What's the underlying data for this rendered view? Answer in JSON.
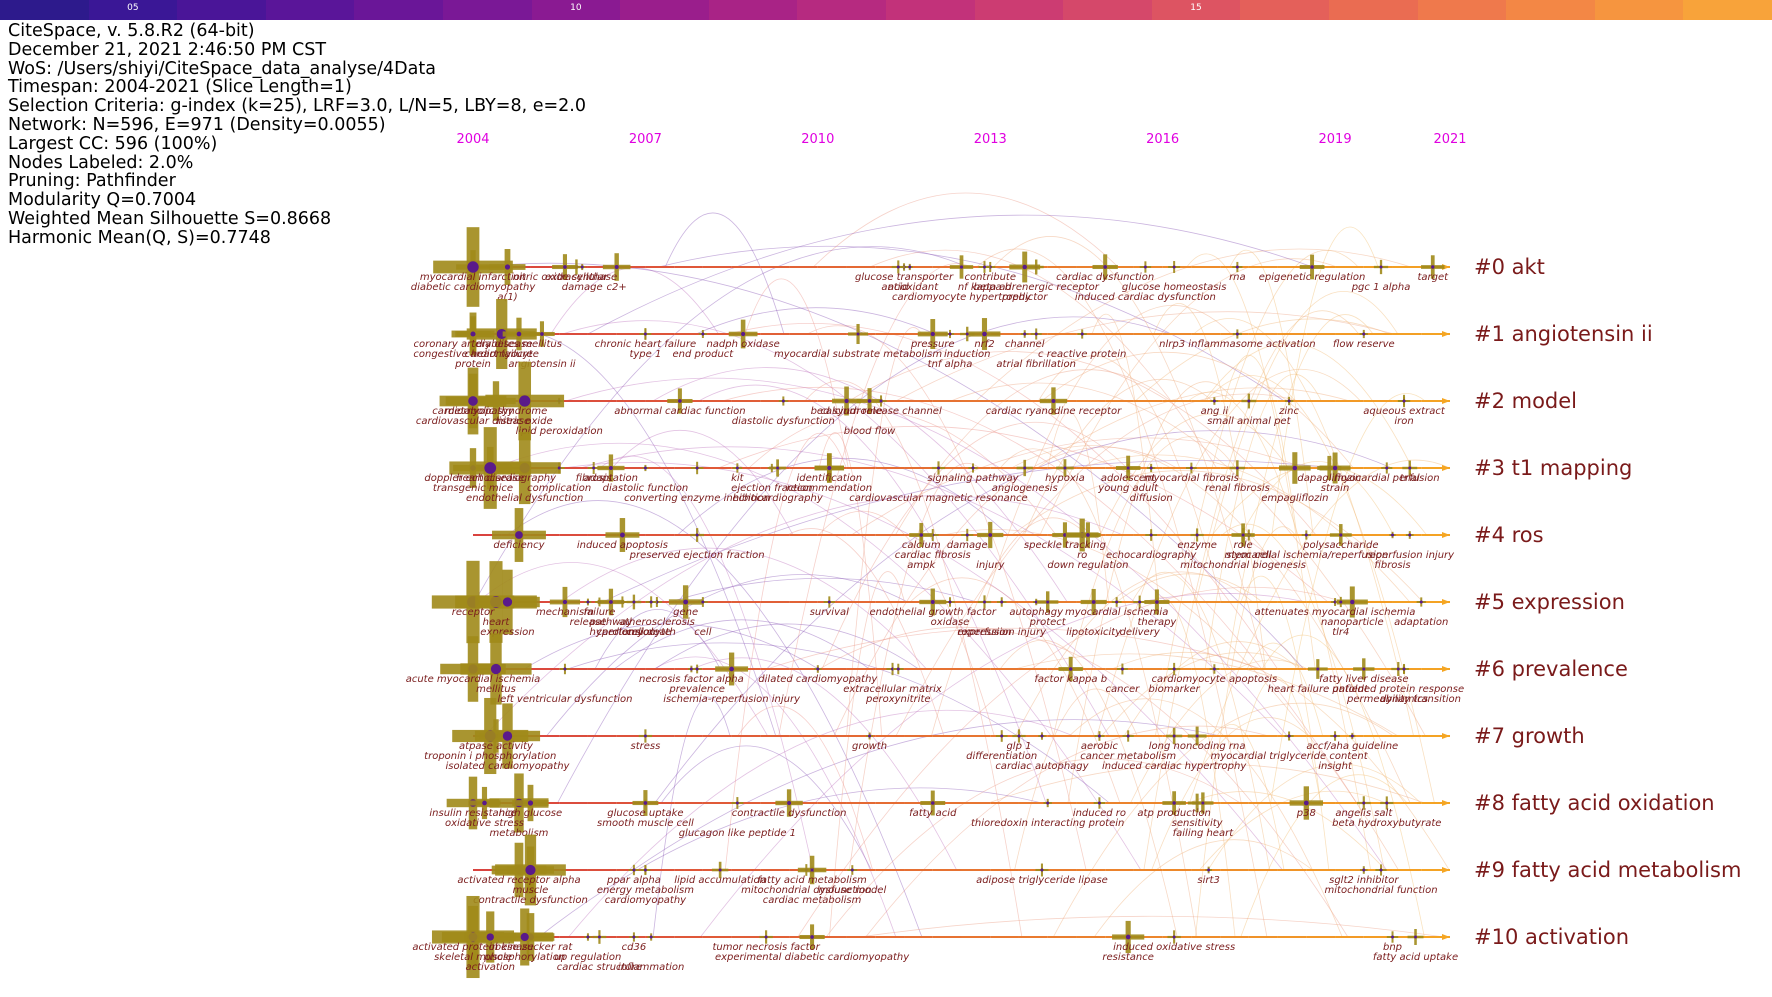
{
  "colorbar": {
    "colors": [
      "#2d1a8c",
      "#3a1796",
      "#4a1598",
      "#5a1599",
      "#6a1698",
      "#7a1896",
      "#8a1a92",
      "#9a1e8c",
      "#a92386",
      "#b62a80",
      "#c2327a",
      "#cc3c72",
      "#d5486a",
      "#dd5462",
      "#e4605a",
      "#ea6c52",
      "#ef794c",
      "#f38745",
      "#f6953f",
      "#f8a33a"
    ],
    "ticks": [
      {
        "index": 1,
        "label": "05"
      },
      {
        "index": 6,
        "label": "10"
      },
      {
        "index": 13,
        "label": "15"
      }
    ]
  },
  "info_lines": [
    "CiteSpace, v. 5.8.R2 (64-bit)",
    "December 21, 2021 2:46:50 PM CST",
    "WoS: /Users/shiyi/CiteSpace_data_analyse/4Data",
    "Timespan: 2004-2021 (Slice Length=1)",
    "Selection Criteria: g-index (k=25), LRF=3.0, L/N=5, LBY=8, e=2.0",
    "Network: N=596, E=971 (Density=0.0055)",
    "Largest CC: 596 (100%)",
    "Nodes Labeled: 2.0%",
    "Pruning: Pathfinder",
    "Modularity Q=0.7004",
    "Weighted Mean Silhouette S=0.8668",
    "Harmonic Mean(Q, S)=0.7748"
  ],
  "year_axis": {
    "start": 2004,
    "end": 2021,
    "labels": [
      "2004",
      "2007",
      "2010",
      "2013",
      "2016",
      "2019",
      "2021"
    ]
  },
  "colors": {
    "line_early": "#d9433f",
    "line_late": "#f5a623",
    "node_olive": "#a0891a",
    "node_purple": "#5a1a8a",
    "label": "#7a1a1a",
    "years": "#e000e0"
  },
  "clusters": [
    {
      "label": "#0 akt",
      "end_year": 2021,
      "keywords": [
        [
          "myocardial infarction",
          2004
        ],
        [
          "diabetic cardiomyopathy",
          2004
        ],
        [
          "a(1)",
          2004.6
        ],
        [
          "extracellular",
          2005.8
        ],
        [
          "damage",
          2005.9
        ],
        [
          "c2+",
          2006.5
        ],
        [
          "nitric oxide synthase",
          2005.6
        ],
        [
          "glucose transporter",
          2011.5
        ],
        [
          "acid",
          2011.4
        ],
        [
          "cardiomyocyte hypertrophy",
          2012.5
        ],
        [
          "antioxidant",
          2011.6
        ],
        [
          "contribute",
          2013.0
        ],
        [
          "nf kappa b",
          2012.9
        ],
        [
          "beta adrenergic receptor",
          2013.8
        ],
        [
          "predictor",
          2013.6
        ],
        [
          "cardiac dysfunction",
          2015.0
        ],
        [
          "induced cardiac dysfunction",
          2015.7
        ],
        [
          "glucose homeostasis",
          2016.2
        ],
        [
          "rna",
          2017.3
        ],
        [
          "epigenetic regulation",
          2018.6
        ],
        [
          "pgc 1 alpha",
          2019.8
        ],
        [
          "target",
          2020.7
        ]
      ]
    },
    {
      "label": "#1 angiotensin ii",
      "end_year": 2021,
      "keywords": [
        [
          "coronary artery disease",
          2004
        ],
        [
          "cardiomyocyte",
          2004.5
        ],
        [
          "protein",
          2004
        ],
        [
          "diabetes mellitus",
          2004.8
        ],
        [
          "congestive heart failure",
          2004
        ],
        [
          "angiotensin ii",
          2005.2
        ],
        [
          "chronic heart failure",
          2007.0
        ],
        [
          "type 1",
          2007.0
        ],
        [
          "end product",
          2008.0
        ],
        [
          "nadph oxidase",
          2008.7
        ],
        [
          "myocardial substrate metabolism",
          2010.7
        ],
        [
          "pressure",
          2012.0
        ],
        [
          "tnf alpha",
          2012.3
        ],
        [
          "induction",
          2012.6
        ],
        [
          "nrf2",
          2012.9
        ],
        [
          "channel",
          2013.6
        ],
        [
          "atrial fibrillation",
          2013.8
        ],
        [
          "c reactive protein",
          2014.6
        ],
        [
          "nlrp3 inflammasome activation",
          2017.3
        ],
        [
          "flow reserve",
          2019.5
        ]
      ]
    },
    {
      "label": "#2 model",
      "end_year": 2021,
      "keywords": [
        [
          "metabolic syndrome",
          2004.4
        ],
        [
          "cardiovascular disease",
          2004
        ],
        [
          "lipid peroxidation",
          2005.5
        ],
        [
          "cardiomyopathy",
          2004
        ],
        [
          "nitric oxide",
          2004.9
        ],
        [
          "abnormal cardiac function",
          2007.6
        ],
        [
          "diastolic dysfunction",
          2009.4
        ],
        [
          "bed syndrome",
          2010.5
        ],
        [
          "blood flow",
          2010.9
        ],
        [
          "calcium release channel",
          2011.1
        ],
        [
          "cardiac ryanodine receptor",
          2014.1
        ],
        [
          "ang ii",
          2016.9
        ],
        [
          "small animal pet",
          2017.5
        ],
        [
          "zinc",
          2018.2
        ],
        [
          "aqueous extract",
          2020.2
        ],
        [
          "iron",
          2020.2
        ]
      ]
    },
    {
      "label": "#3 t1 mapping",
      "end_year": 2021,
      "keywords": [
        [
          "doppler echocardiography",
          2004.3
        ],
        [
          "transgenic mice",
          2004
        ],
        [
          "endothelial dysfunction",
          2004.9
        ],
        [
          "heart disease",
          2004.3
        ],
        [
          "complication",
          2005.5
        ],
        [
          "adaptation",
          2006.4
        ],
        [
          "fibrosis",
          2006.1
        ],
        [
          "diastolic function",
          2007.0
        ],
        [
          "converting enzyme inhibition",
          2007.9
        ],
        [
          "kit",
          2008.6
        ],
        [
          "ejection fraction",
          2009.2
        ],
        [
          "echocardiography",
          2009.3
        ],
        [
          "identification",
          2010.2
        ],
        [
          "recommendation",
          2010.2
        ],
        [
          "cardiovascular magnetic resonance",
          2012.1
        ],
        [
          "signaling pathway",
          2012.7
        ],
        [
          "angiogenesis",
          2013.6
        ],
        [
          "hypoxia",
          2014.3
        ],
        [
          "adolescent",
          2015.4
        ],
        [
          "young adult",
          2015.4
        ],
        [
          "diffusion",
          2015.8
        ],
        [
          "myocardial fibrosis",
          2016.5
        ],
        [
          "renal fibrosis",
          2017.3
        ],
        [
          "dapagliflozin",
          2018.9
        ],
        [
          "empagliflozin",
          2018.3
        ],
        [
          "strain",
          2019.0
        ],
        [
          "trial",
          2020.3
        ],
        [
          "myocardial perfusion",
          2019.9
        ]
      ]
    },
    {
      "label": "#4 ros",
      "end_year": 2021,
      "keywords": [
        [
          "deficiency",
          2004.8
        ],
        [
          "induced apoptosis",
          2006.6
        ],
        [
          "preserved ejection fraction",
          2007.9
        ],
        [
          "calcium",
          2011.8
        ],
        [
          "cardiac fibrosis",
          2012.0
        ],
        [
          "damage",
          2012.6
        ],
        [
          "ampk",
          2011.8
        ],
        [
          "injury",
          2013.0
        ],
        [
          "speckle tracking",
          2014.3
        ],
        [
          "ro",
          2014.6
        ],
        [
          "down regulation",
          2014.7
        ],
        [
          "echocardiography",
          2015.8
        ],
        [
          "enzyme",
          2016.6
        ],
        [
          "role",
          2017.4
        ],
        [
          "stem cell",
          2017.5
        ],
        [
          "mitochondrial biogenesis",
          2017.4
        ],
        [
          "myocardial ischemia/reperfusion",
          2018.5
        ],
        [
          "polysaccharide",
          2019.1
        ],
        [
          "fibrosis",
          2020.0
        ],
        [
          "reperfusion injury",
          2020.3
        ]
      ]
    },
    {
      "label": "#5 expression",
      "end_year": 2021,
      "keywords": [
        [
          "receptor",
          2004
        ],
        [
          "heart",
          2004.4
        ],
        [
          "expression",
          2004.6
        ],
        [
          "mechanism",
          2005.6
        ],
        [
          "release",
          2006.0
        ],
        [
          "hypertension",
          2006.6
        ],
        [
          "failure",
          2006.2
        ],
        [
          "atherosclerosis",
          2007.2
        ],
        [
          "cardiomyocyte",
          2006.8
        ],
        [
          "gene",
          2007.7
        ],
        [
          "pathway",
          2006.4
        ],
        [
          "cell death",
          2007.1
        ],
        [
          "cell",
          2008.0
        ],
        [
          "survival",
          2010.2
        ],
        [
          "endothelial growth factor",
          2012.0
        ],
        [
          "oxidase",
          2012.3
        ],
        [
          "expression",
          2012.9
        ],
        [
          "reperfusion injury",
          2013.2
        ],
        [
          "autophagy",
          2013.8
        ],
        [
          "protect",
          2014.0
        ],
        [
          "myocardial ischemia",
          2015.2
        ],
        [
          "lipotoxicity",
          2014.8
        ],
        [
          "therapy",
          2015.9
        ],
        [
          "delivery",
          2015.6
        ],
        [
          "attenuates myocardial ischemia",
          2019.0
        ],
        [
          "nanoparticle",
          2019.3
        ],
        [
          "tlr4",
          2019.1
        ],
        [
          "adaptation",
          2020.5
        ]
      ]
    },
    {
      "label": "#6 prevalence",
      "end_year": 2021,
      "keywords": [
        [
          "acute myocardial ischemia",
          2004
        ],
        [
          "mellitus",
          2004.4
        ],
        [
          "left ventricular dysfunction",
          2005.6
        ],
        [
          "necrosis factor alpha",
          2007.8
        ],
        [
          "prevalence",
          2007.9
        ],
        [
          "ischemia-reperfusion injury",
          2008.5
        ],
        [
          "dilated cardiomyopathy",
          2010.0
        ],
        [
          "extracellular matrix",
          2011.3
        ],
        [
          "peroxynitrite",
          2011.4
        ],
        [
          "factor kappa b",
          2014.4
        ],
        [
          "cancer",
          2015.3
        ],
        [
          "cardiomyocyte apoptosis",
          2016.9
        ],
        [
          "biomarker",
          2016.2
        ],
        [
          "heart failure patient",
          2018.7
        ],
        [
          "fatty liver disease",
          2019.5
        ],
        [
          "permeability transition",
          2020.2
        ],
        [
          "unfolded protein response",
          2020.1
        ],
        [
          "dynamics",
          2020.2
        ]
      ]
    },
    {
      "label": "#7 growth",
      "end_year": 2021,
      "keywords": [
        [
          "atpase activity",
          2004.4
        ],
        [
          "troponin i phosphorylation",
          2004.3
        ],
        [
          "isolated cardiomyopathy",
          2004.6
        ],
        [
          "stress",
          2007.0
        ],
        [
          "growth",
          2010.9
        ],
        [
          "glp 1",
          2013.5
        ],
        [
          "differentiation",
          2013.2
        ],
        [
          "cardiac autophagy",
          2013.9
        ],
        [
          "aerobic",
          2014.9
        ],
        [
          "cancer metabolism",
          2015.4
        ],
        [
          "induced cardiac hypertrophy",
          2016.2
        ],
        [
          "long noncoding rna",
          2016.6
        ],
        [
          "myocardial triglyceride content",
          2018.2
        ],
        [
          "accf/aha guideline",
          2019.3
        ],
        [
          "insight",
          2019.0
        ]
      ]
    },
    {
      "label": "#8 fatty acid oxidation",
      "end_year": 2021,
      "keywords": [
        [
          "insulin resistance",
          2004
        ],
        [
          "oxidative stress",
          2004.2
        ],
        [
          "metabolism",
          2004.8
        ],
        [
          "high glucose",
          2005.0
        ],
        [
          "glucose uptake",
          2007.0
        ],
        [
          "smooth muscle cell",
          2007.0
        ],
        [
          "glucagon like peptide 1",
          2008.6
        ],
        [
          "contractile dysfunction",
          2009.5
        ],
        [
          "fatty acid",
          2012.0
        ],
        [
          "thioredoxin interacting protein",
          2014.0
        ],
        [
          "induced ro",
          2014.9
        ],
        [
          "atp production",
          2016.2
        ],
        [
          "sensitivity",
          2016.6
        ],
        [
          "failing heart",
          2016.7
        ],
        [
          "angelis salt",
          2019.5
        ],
        [
          "p38",
          2018.5
        ],
        [
          "beta hydroxybutyrate",
          2019.9
        ]
      ]
    },
    {
      "label": "#9 fatty acid metabolism",
      "end_year": 2021,
      "keywords": [
        [
          "activated receptor alpha",
          2004.8
        ],
        [
          "muscle",
          2005.0
        ],
        [
          "contractile dysfunction",
          2005.0
        ],
        [
          "ppar alpha",
          2006.8
        ],
        [
          "energy metabolism",
          2007.0
        ],
        [
          "cardiomyopathy",
          2007.0
        ],
        [
          "lipid accumulation",
          2008.3
        ],
        [
          "mitochondrial dysfunction",
          2009.8
        ],
        [
          "cardiac metabolism",
          2009.9
        ],
        [
          "fatty acid metabolism",
          2009.9
        ],
        [
          "mouse model",
          2010.6
        ],
        [
          "adipose triglyceride lipase",
          2013.9
        ],
        [
          "sirt3",
          2016.8
        ],
        [
          "sglt2 inhibitor",
          2019.5
        ],
        [
          "mitochondrial function",
          2019.8
        ]
      ]
    },
    {
      "label": "#10 activation",
      "end_year": 2021,
      "keywords": [
        [
          "activated protein kinase",
          2004
        ],
        [
          "skeletal muscle",
          2004
        ],
        [
          "activation",
          2004.3
        ],
        [
          "obese zucker rat",
          2005.0
        ],
        [
          "phosphorylation",
          2004.9
        ],
        [
          "cardiac structure",
          2006.2
        ],
        [
          "cd36",
          2006.8
        ],
        [
          "up regulation",
          2006.0
        ],
        [
          "inflammation",
          2007.1
        ],
        [
          "tumor necrosis factor",
          2009.1
        ],
        [
          "experimental diabetic cardiomyopathy",
          2009.9
        ],
        [
          "induced oxidative stress",
          2016.2
        ],
        [
          "resistance",
          2015.4
        ],
        [
          "bnp",
          2020.0
        ],
        [
          "fatty acid uptake",
          2020.4
        ]
      ]
    }
  ]
}
